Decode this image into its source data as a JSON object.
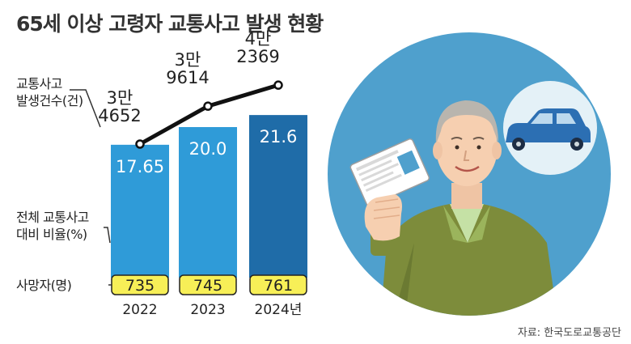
{
  "title": "65세 이상 고령자 교통사고 발생 현황",
  "source": "자료: 한국도로교통공단",
  "colors": {
    "bar_light": "#2f9bd8",
    "bar_last": "#1f6ca8",
    "line": "#111111",
    "badge": "#f7ef57",
    "circle": "#4fa0cd"
  },
  "chart_data": {
    "type": "bar",
    "categories": [
      "2022",
      "2023",
      "2024년"
    ],
    "series": [
      {
        "name": "전체 교통사고 대비 비율(%)",
        "values": [
          17.65,
          20.0,
          21.6
        ],
        "labels": [
          "17.65",
          "20.0",
          "21.6"
        ]
      },
      {
        "name": "교통사고 발생건수(건)",
        "values": [
          34652,
          39614,
          42369
        ],
        "labels": [
          "3만\n4652",
          "3만\n9614",
          "4만\n2369"
        ]
      },
      {
        "name": "사망자(명)",
        "values": [
          735,
          745,
          761
        ],
        "labels": [
          "735",
          "745",
          "761"
        ]
      }
    ],
    "series_labels": {
      "accidents": "교통사고\n발생건수(건)",
      "ratio": "전체 교통사고\n대비 비율(%)",
      "deaths": "사망자(명)"
    },
    "axes": "none",
    "grid": false,
    "illustration": "elderly-man-holding-driver-license-car"
  }
}
